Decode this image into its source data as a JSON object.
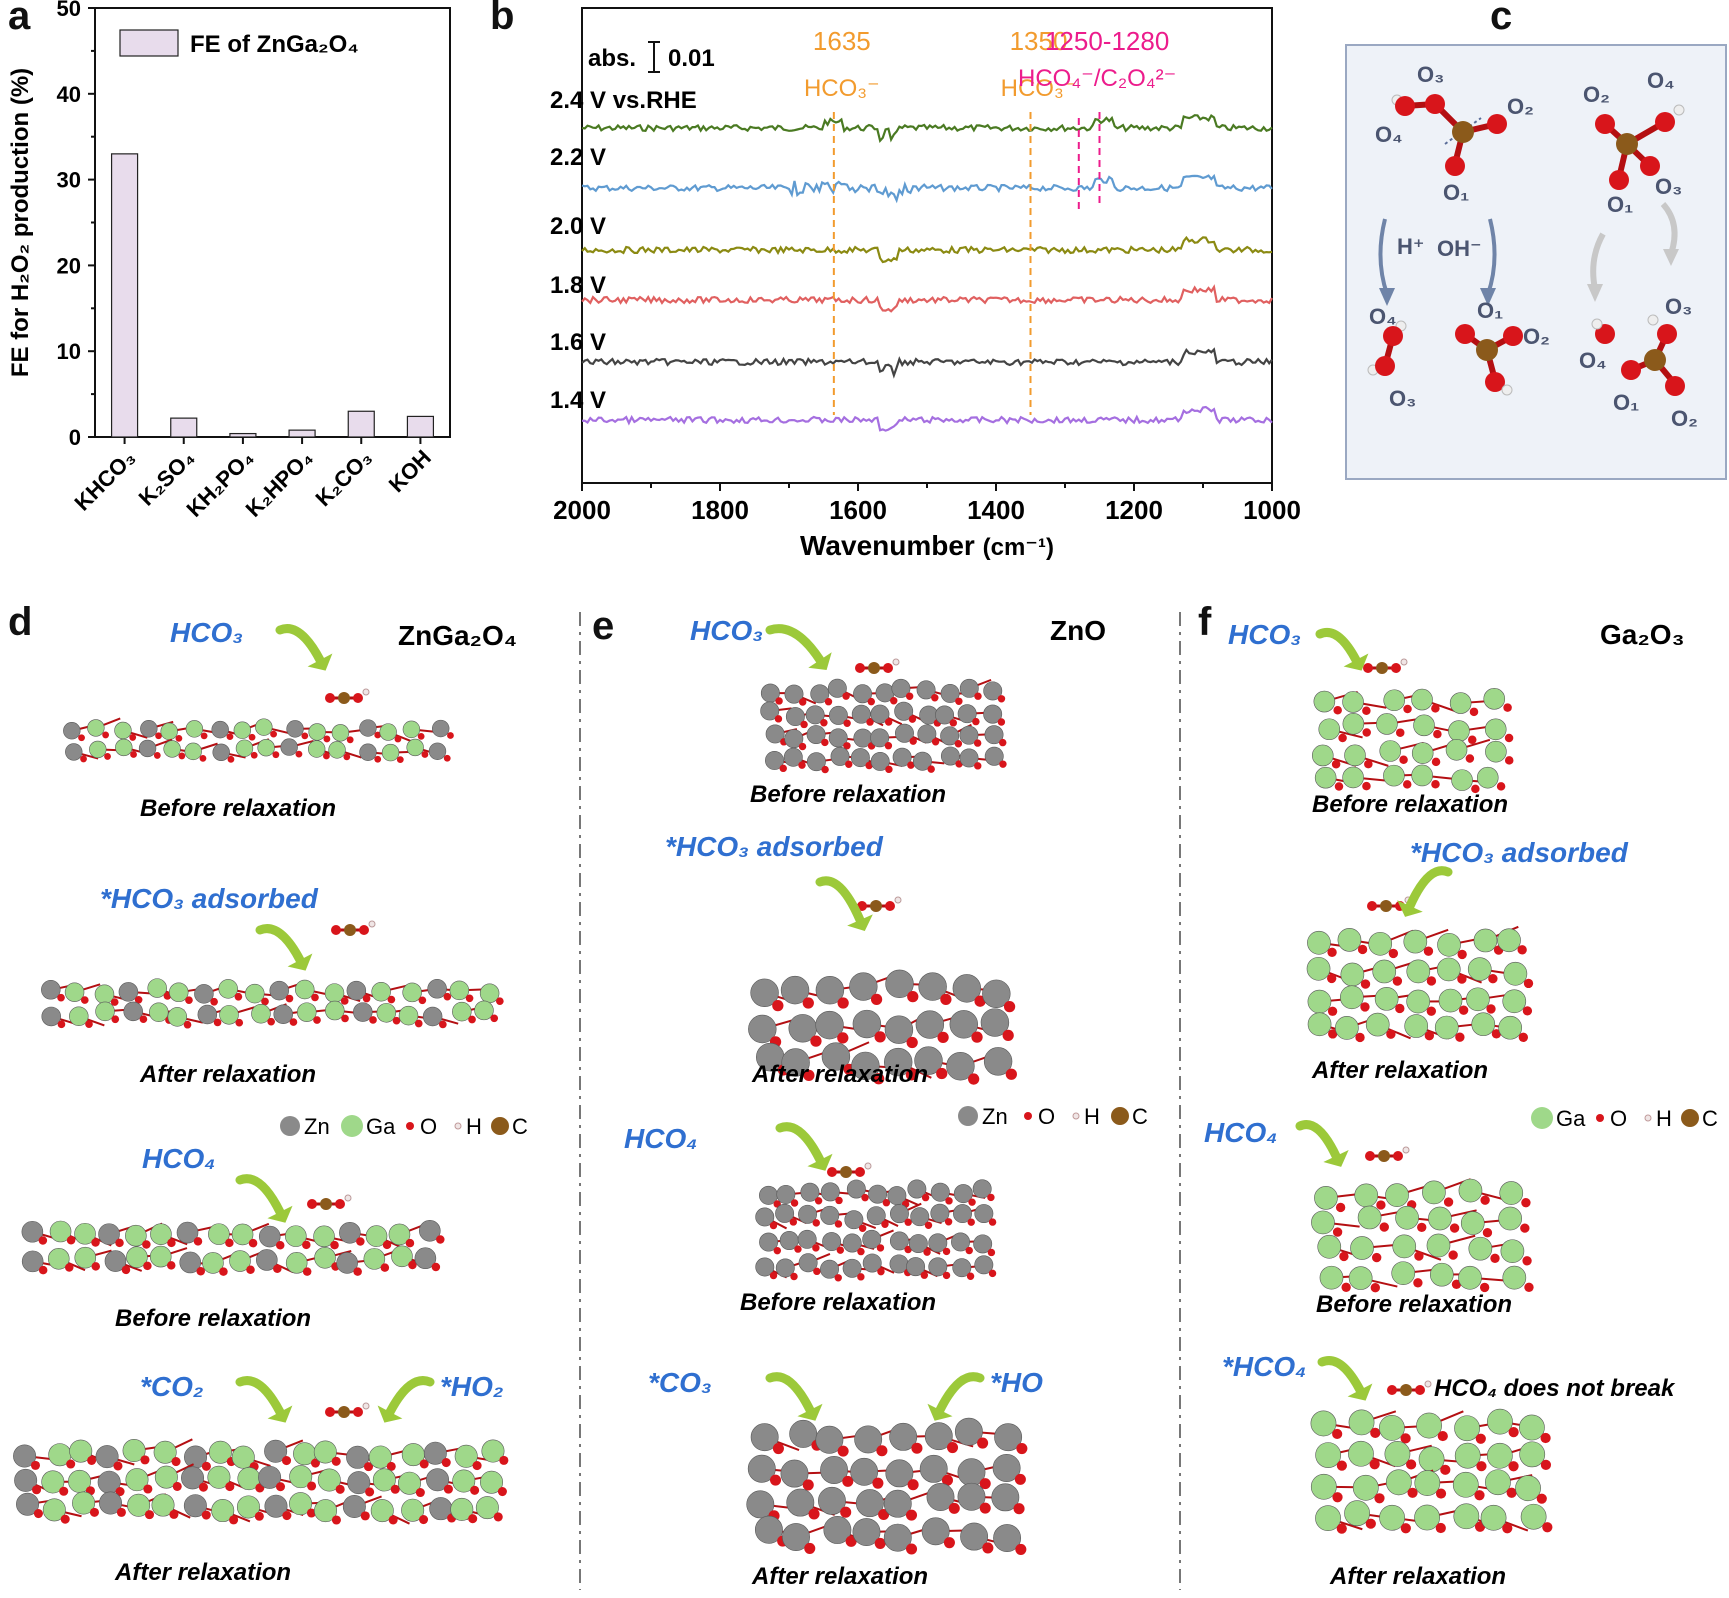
{
  "panels": {
    "a": "a",
    "b": "b",
    "c": "c",
    "d": "d",
    "e": "e",
    "f": "f"
  },
  "chart_data": [
    {
      "type": "bar",
      "panel": "a",
      "legend": "FE of ZnGa₂O₄",
      "ylabel": "FE for H₂O₂ production (%)",
      "categories": [
        "KHCO₃",
        "K₂SO₄",
        "KH₂PO₄",
        "K₂HPO₄",
        "K₂CO₃",
        "KOH"
      ],
      "values": [
        33,
        2.2,
        0.4,
        0.8,
        3.0,
        2.4
      ],
      "ylim": [
        0,
        50
      ],
      "yticks": [
        "0",
        "10",
        "20",
        "30",
        "40",
        "50"
      ],
      "bar_color": "#e8dcec"
    },
    {
      "type": "line",
      "panel": "b",
      "xlabel": "Wavenumber",
      "xunit": "(cm⁻¹)",
      "xlim": [
        2000,
        1000
      ],
      "xticks": [
        "2000",
        "1800",
        "1600",
        "1400",
        "1200",
        "1000"
      ],
      "scale_label": "abs.",
      "scale_value": "0.01",
      "series": [
        {
          "name": "2.4 V vs.RHE",
          "color": "#4a7a22"
        },
        {
          "name": "2.2 V",
          "color": "#5f9bd1"
        },
        {
          "name": "2.0 V",
          "color": "#8b8a12"
        },
        {
          "name": "1.8 V",
          "color": "#e06060"
        },
        {
          "name": "1.6 V",
          "color": "#444444"
        },
        {
          "name": "1.4 V",
          "color": "#a56fe0"
        }
      ],
      "annotations": [
        {
          "pos": 1635,
          "value": "1635",
          "label": "HCO₃⁻",
          "color": "#f29b2e"
        },
        {
          "pos": 1350,
          "value": "1350",
          "label": "HCO₃⁻",
          "color": "#f29b2e"
        },
        {
          "pos": 1265,
          "value": "1250-1280",
          "label": "HCO₄⁻/C₂O₄²⁻",
          "color": "#ec1c8c"
        }
      ]
    }
  ],
  "panel_c": {
    "labels_top_left": [
      "O₃",
      "O₄",
      "O₂",
      "O₁"
    ],
    "labels_top_right": [
      "O₄",
      "O₂",
      "O₃",
      "O₁"
    ],
    "labels_bottom_left": [
      "O₄",
      "O₃",
      "O₁",
      "O₂"
    ],
    "labels_bottom_right": [
      "O₃",
      "O₄",
      "O₁",
      "O₂"
    ],
    "hplus": "H⁺",
    "ohminus": "OH⁻"
  },
  "panel_d": {
    "title": "ZnGa₂O₄",
    "label1": "HCO₃",
    "cap1": "Before relaxation",
    "label2": "*HCO₃ adsorbed",
    "cap2": "After relaxation",
    "legend": [
      "Zn",
      "Ga",
      "O",
      "H",
      "C"
    ],
    "label3": "HCO₄",
    "cap3": "Before relaxation",
    "label4a": "*CO₂",
    "label4b": "*HO₂",
    "cap4": "After relaxation"
  },
  "panel_e": {
    "title": "ZnO",
    "label1": "HCO₃",
    "cap1": "Before relaxation",
    "label2": "*HCO₃ adsorbed",
    "cap2": "After relaxation",
    "legend": [
      "Zn",
      "O",
      "H",
      "C"
    ],
    "label3": "HCO₄",
    "cap3": "Before relaxation",
    "label4a": "*CO₃",
    "label4b": "*HO",
    "cap4": "After relaxation"
  },
  "panel_f": {
    "title": "Ga₂O₃",
    "label1": "HCO₃",
    "cap1": "Before relaxation",
    "label2": "*HCO₃ adsorbed",
    "cap2": "After relaxation",
    "legend": [
      "Ga",
      "O",
      "H",
      "C"
    ],
    "label3": "HCO₄",
    "cap3": "Before relaxation",
    "label4": "*HCO₄",
    "note": "HCO₄ does not break",
    "cap4": "After relaxation"
  },
  "colors": {
    "zn": "#8a8a8a",
    "ga": "#9fd88a",
    "o": "#d8151b",
    "c": "#8b5a1b",
    "h": "#f0e6e6",
    "blue_label": "#2f6fd0",
    "orange": "#f29b2e",
    "magenta": "#ec1c8c",
    "arrow": "#9cc93a"
  }
}
